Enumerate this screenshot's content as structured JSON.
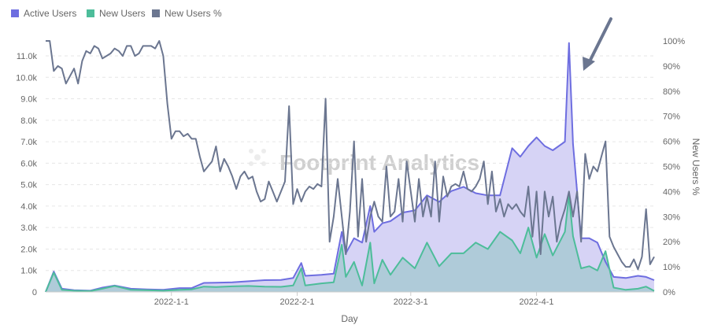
{
  "chart_data": {
    "type": "area",
    "watermark": "Footprint Analytics",
    "xlabel": "Day",
    "ylabel_left": "",
    "ylabel_right": "New Users %",
    "x_range": [
      "2021-12-01",
      "2022-04-30"
    ],
    "y_left_range": [
      0,
      12000
    ],
    "y_right_range": [
      0,
      1.0
    ],
    "y_left_ticks": [
      0,
      1000,
      2000,
      3000,
      4000,
      5000,
      6000,
      7000,
      8000,
      9000,
      10000,
      11000
    ],
    "y_left_tick_labels": [
      "0",
      "1.0k",
      "2.0k",
      "3.0k",
      "4.0k",
      "5.0k",
      "6.0k",
      "7.0k",
      "8.0k",
      "9.0k",
      "10.0k",
      "11.0k"
    ],
    "y_right_ticks": [
      0,
      0.1,
      0.2,
      0.3,
      0.4,
      0.5,
      0.6,
      0.7,
      0.8,
      0.9,
      1.0
    ],
    "y_right_tick_labels": [
      "0%",
      "10%",
      "20%",
      "30%",
      "40%",
      "50%",
      "60%",
      "70%",
      "80%",
      "90%",
      "100%"
    ],
    "x_ticks": [
      "2022-01-01",
      "2022-02-01",
      "2022-03-01",
      "2022-04-01"
    ],
    "x_tick_labels": [
      "2022-1-1",
      "2022-2-1",
      "2022-3-1",
      "2022-4-1"
    ],
    "grid": "horizontal dashed",
    "legend_position": "top-left",
    "annotation": "arrow pointing at spike near 2022-04-01",
    "series": [
      {
        "name": "Active Users",
        "color": "#6e6ee0",
        "fill": "#d6d3f5",
        "axis": "left",
        "points": [
          [
            "2021-12-01",
            0
          ],
          [
            "2021-12-03",
            950
          ],
          [
            "2021-12-05",
            150
          ],
          [
            "2021-12-08",
            80
          ],
          [
            "2021-12-12",
            60
          ],
          [
            "2021-12-15",
            200
          ],
          [
            "2021-12-18",
            300
          ],
          [
            "2021-12-22",
            150
          ],
          [
            "2021-12-26",
            120
          ],
          [
            "2021-12-30",
            100
          ],
          [
            "2022-01-03",
            180
          ],
          [
            "2022-01-06",
            180
          ],
          [
            "2022-01-09",
            420
          ],
          [
            "2022-01-12",
            430
          ],
          [
            "2022-01-16",
            450
          ],
          [
            "2022-01-20",
            500
          ],
          [
            "2022-01-24",
            550
          ],
          [
            "2022-01-28",
            560
          ],
          [
            "2022-01-31",
            650
          ],
          [
            "2022-02-02",
            1350
          ],
          [
            "2022-02-03",
            750
          ],
          [
            "2022-02-07",
            800
          ],
          [
            "2022-02-10",
            850
          ],
          [
            "2022-02-12",
            2800
          ],
          [
            "2022-02-13",
            1800
          ],
          [
            "2022-02-15",
            2500
          ],
          [
            "2022-02-17",
            2300
          ],
          [
            "2022-02-19",
            4000
          ],
          [
            "2022-02-20",
            2800
          ],
          [
            "2022-02-22",
            3200
          ],
          [
            "2022-02-24",
            3300
          ],
          [
            "2022-02-27",
            3700
          ],
          [
            "2022-03-02",
            3800
          ],
          [
            "2022-03-05",
            4500
          ],
          [
            "2022-03-08",
            4200
          ],
          [
            "2022-03-11",
            4700
          ],
          [
            "2022-03-14",
            4900
          ],
          [
            "2022-03-17",
            4600
          ],
          [
            "2022-03-20",
            4500
          ],
          [
            "2022-03-23",
            4500
          ],
          [
            "2022-03-26",
            6700
          ],
          [
            "2022-03-28",
            6300
          ],
          [
            "2022-03-30",
            6800
          ],
          [
            "2022-04-01",
            7200
          ],
          [
            "2022-04-03",
            6800
          ],
          [
            "2022-04-05",
            6600
          ],
          [
            "2022-04-08",
            7000
          ],
          [
            "2022-04-09",
            11600
          ],
          [
            "2022-04-10",
            6900
          ],
          [
            "2022-04-12",
            2500
          ],
          [
            "2022-04-14",
            2500
          ],
          [
            "2022-04-16",
            2300
          ],
          [
            "2022-04-18",
            1400
          ],
          [
            "2022-04-20",
            700
          ],
          [
            "2022-04-23",
            650
          ],
          [
            "2022-04-26",
            750
          ],
          [
            "2022-04-28",
            700
          ],
          [
            "2022-04-30",
            550
          ]
        ]
      },
      {
        "name": "New Users",
        "color": "#4dbd9a",
        "fill": "#a8c9d3",
        "axis": "left",
        "points": [
          [
            "2021-12-01",
            0
          ],
          [
            "2021-12-03",
            900
          ],
          [
            "2021-12-05",
            100
          ],
          [
            "2021-12-08",
            60
          ],
          [
            "2021-12-12",
            40
          ],
          [
            "2021-12-15",
            150
          ],
          [
            "2021-12-18",
            280
          ],
          [
            "2021-12-22",
            100
          ],
          [
            "2021-12-26",
            80
          ],
          [
            "2021-12-30",
            60
          ],
          [
            "2022-01-03",
            100
          ],
          [
            "2022-01-06",
            120
          ],
          [
            "2022-01-09",
            250
          ],
          [
            "2022-01-12",
            230
          ],
          [
            "2022-01-16",
            260
          ],
          [
            "2022-01-20",
            280
          ],
          [
            "2022-01-24",
            250
          ],
          [
            "2022-01-28",
            240
          ],
          [
            "2022-01-31",
            300
          ],
          [
            "2022-02-02",
            1100
          ],
          [
            "2022-02-03",
            300
          ],
          [
            "2022-02-07",
            400
          ],
          [
            "2022-02-10",
            450
          ],
          [
            "2022-02-12",
            2200
          ],
          [
            "2022-02-13",
            700
          ],
          [
            "2022-02-15",
            1400
          ],
          [
            "2022-02-17",
            300
          ],
          [
            "2022-02-19",
            2300
          ],
          [
            "2022-02-20",
            400
          ],
          [
            "2022-02-22",
            1500
          ],
          [
            "2022-02-24",
            800
          ],
          [
            "2022-02-27",
            1600
          ],
          [
            "2022-03-02",
            1100
          ],
          [
            "2022-03-05",
            2300
          ],
          [
            "2022-03-08",
            1200
          ],
          [
            "2022-03-11",
            1800
          ],
          [
            "2022-03-14",
            1800
          ],
          [
            "2022-03-17",
            2300
          ],
          [
            "2022-03-20",
            2000
          ],
          [
            "2022-03-23",
            2800
          ],
          [
            "2022-03-26",
            2400
          ],
          [
            "2022-03-28",
            1800
          ],
          [
            "2022-03-30",
            3000
          ],
          [
            "2022-04-01",
            1600
          ],
          [
            "2022-04-03",
            2700
          ],
          [
            "2022-04-05",
            1700
          ],
          [
            "2022-04-08",
            2800
          ],
          [
            "2022-04-09",
            4500
          ],
          [
            "2022-04-10",
            2600
          ],
          [
            "2022-04-12",
            1100
          ],
          [
            "2022-04-14",
            1200
          ],
          [
            "2022-04-16",
            1000
          ],
          [
            "2022-04-18",
            1900
          ],
          [
            "2022-04-20",
            200
          ],
          [
            "2022-04-23",
            100
          ],
          [
            "2022-04-26",
            150
          ],
          [
            "2022-04-28",
            250
          ],
          [
            "2022-04-30",
            50
          ]
        ]
      },
      {
        "name": "New Users %",
        "color": "#6b7690",
        "axis": "right",
        "points": [
          [
            "2021-12-01",
            1.0
          ],
          [
            "2021-12-02",
            1.0
          ],
          [
            "2021-12-03",
            0.88
          ],
          [
            "2021-12-04",
            0.9
          ],
          [
            "2021-12-05",
            0.89
          ],
          [
            "2021-12-06",
            0.83
          ],
          [
            "2021-12-07",
            0.86
          ],
          [
            "2021-12-08",
            0.89
          ],
          [
            "2021-12-09",
            0.83
          ],
          [
            "2021-12-10",
            0.92
          ],
          [
            "2021-12-11",
            0.96
          ],
          [
            "2021-12-12",
            0.95
          ],
          [
            "2021-12-13",
            0.98
          ],
          [
            "2021-12-14",
            0.97
          ],
          [
            "2021-12-15",
            0.93
          ],
          [
            "2021-12-16",
            0.94
          ],
          [
            "2021-12-17",
            0.95
          ],
          [
            "2021-12-18",
            0.97
          ],
          [
            "2021-12-19",
            0.96
          ],
          [
            "2021-12-20",
            0.94
          ],
          [
            "2021-12-21",
            0.98
          ],
          [
            "2021-12-22",
            0.98
          ],
          [
            "2021-12-23",
            0.94
          ],
          [
            "2021-12-24",
            0.95
          ],
          [
            "2021-12-25",
            0.98
          ],
          [
            "2021-12-26",
            0.98
          ],
          [
            "2021-12-27",
            0.98
          ],
          [
            "2021-12-28",
            0.97
          ],
          [
            "2021-12-29",
            1.0
          ],
          [
            "2021-12-30",
            0.94
          ],
          [
            "2021-12-31",
            0.75
          ],
          [
            "2022-01-01",
            0.61
          ],
          [
            "2022-01-02",
            0.64
          ],
          [
            "2022-01-03",
            0.64
          ],
          [
            "2022-01-04",
            0.62
          ],
          [
            "2022-01-05",
            0.63
          ],
          [
            "2022-01-06",
            0.61
          ],
          [
            "2022-01-07",
            0.61
          ],
          [
            "2022-01-08",
            0.54
          ],
          [
            "2022-01-09",
            0.48
          ],
          [
            "2022-01-10",
            0.5
          ],
          [
            "2022-01-11",
            0.52
          ],
          [
            "2022-01-12",
            0.58
          ],
          [
            "2022-01-13",
            0.48
          ],
          [
            "2022-01-14",
            0.53
          ],
          [
            "2022-01-15",
            0.5
          ],
          [
            "2022-01-16",
            0.46
          ],
          [
            "2022-01-17",
            0.41
          ],
          [
            "2022-01-18",
            0.46
          ],
          [
            "2022-01-19",
            0.48
          ],
          [
            "2022-01-20",
            0.45
          ],
          [
            "2022-01-21",
            0.46
          ],
          [
            "2022-01-22",
            0.4
          ],
          [
            "2022-01-23",
            0.36
          ],
          [
            "2022-01-24",
            0.37
          ],
          [
            "2022-01-25",
            0.44
          ],
          [
            "2022-01-26",
            0.4
          ],
          [
            "2022-01-27",
            0.36
          ],
          [
            "2022-01-28",
            0.4
          ],
          [
            "2022-01-29",
            0.44
          ],
          [
            "2022-01-30",
            0.74
          ],
          [
            "2022-01-31",
            0.35
          ],
          [
            "2022-02-01",
            0.41
          ],
          [
            "2022-02-02",
            0.36
          ],
          [
            "2022-02-03",
            0.4
          ],
          [
            "2022-02-04",
            0.42
          ],
          [
            "2022-02-05",
            0.41
          ],
          [
            "2022-02-06",
            0.43
          ],
          [
            "2022-02-07",
            0.42
          ],
          [
            "2022-02-08",
            0.77
          ],
          [
            "2022-02-09",
            0.2
          ],
          [
            "2022-02-10",
            0.3
          ],
          [
            "2022-02-11",
            0.45
          ],
          [
            "2022-02-12",
            0.3
          ],
          [
            "2022-02-13",
            0.15
          ],
          [
            "2022-02-14",
            0.32
          ],
          [
            "2022-02-15",
            0.6
          ],
          [
            "2022-02-16",
            0.22
          ],
          [
            "2022-02-17",
            0.45
          ],
          [
            "2022-02-18",
            0.2
          ],
          [
            "2022-02-19",
            0.3
          ],
          [
            "2022-02-20",
            0.36
          ],
          [
            "2022-02-21",
            0.3
          ],
          [
            "2022-02-22",
            0.28
          ],
          [
            "2022-02-23",
            0.5
          ],
          [
            "2022-02-24",
            0.3
          ],
          [
            "2022-02-25",
            0.32
          ],
          [
            "2022-02-26",
            0.45
          ],
          [
            "2022-02-27",
            0.28
          ],
          [
            "2022-02-28",
            0.52
          ],
          [
            "2022-03-01",
            0.4
          ],
          [
            "2022-03-02",
            0.28
          ],
          [
            "2022-03-03",
            0.45
          ],
          [
            "2022-03-04",
            0.3
          ],
          [
            "2022-03-05",
            0.38
          ],
          [
            "2022-03-06",
            0.3
          ],
          [
            "2022-03-07",
            0.52
          ],
          [
            "2022-03-08",
            0.28
          ],
          [
            "2022-03-09",
            0.46
          ],
          [
            "2022-03-10",
            0.38
          ],
          [
            "2022-03-11",
            0.42
          ],
          [
            "2022-03-12",
            0.43
          ],
          [
            "2022-03-13",
            0.42
          ],
          [
            "2022-03-14",
            0.48
          ],
          [
            "2022-03-15",
            0.41
          ],
          [
            "2022-03-16",
            0.4
          ],
          [
            "2022-03-17",
            0.42
          ],
          [
            "2022-03-18",
            0.45
          ],
          [
            "2022-03-19",
            0.52
          ],
          [
            "2022-03-20",
            0.35
          ],
          [
            "2022-03-21",
            0.48
          ],
          [
            "2022-03-22",
            0.32
          ],
          [
            "2022-03-23",
            0.37
          ],
          [
            "2022-03-24",
            0.3
          ],
          [
            "2022-03-25",
            0.35
          ],
          [
            "2022-03-26",
            0.33
          ],
          [
            "2022-03-27",
            0.35
          ],
          [
            "2022-03-28",
            0.32
          ],
          [
            "2022-03-29",
            0.3
          ],
          [
            "2022-03-30",
            0.42
          ],
          [
            "2022-03-31",
            0.22
          ],
          [
            "2022-04-01",
            0.4
          ],
          [
            "2022-04-02",
            0.15
          ],
          [
            "2022-04-03",
            0.4
          ],
          [
            "2022-04-04",
            0.3
          ],
          [
            "2022-04-05",
            0.38
          ],
          [
            "2022-04-06",
            0.2
          ],
          [
            "2022-04-07",
            0.28
          ],
          [
            "2022-04-08",
            0.33
          ],
          [
            "2022-04-09",
            0.4
          ],
          [
            "2022-04-10",
            0.3
          ],
          [
            "2022-04-11",
            0.4
          ],
          [
            "2022-04-12",
            0.2
          ],
          [
            "2022-04-13",
            0.55
          ],
          [
            "2022-04-14",
            0.45
          ],
          [
            "2022-04-15",
            0.5
          ],
          [
            "2022-04-16",
            0.48
          ],
          [
            "2022-04-17",
            0.54
          ],
          [
            "2022-04-18",
            0.6
          ],
          [
            "2022-04-19",
            0.22
          ],
          [
            "2022-04-20",
            0.18
          ],
          [
            "2022-04-21",
            0.15
          ],
          [
            "2022-04-22",
            0.12
          ],
          [
            "2022-04-23",
            0.1
          ],
          [
            "2022-04-24",
            0.1
          ],
          [
            "2022-04-25",
            0.13
          ],
          [
            "2022-04-26",
            0.09
          ],
          [
            "2022-04-27",
            0.14
          ],
          [
            "2022-04-28",
            0.33
          ],
          [
            "2022-04-29",
            0.11
          ],
          [
            "2022-04-30",
            0.14
          ]
        ]
      }
    ]
  }
}
